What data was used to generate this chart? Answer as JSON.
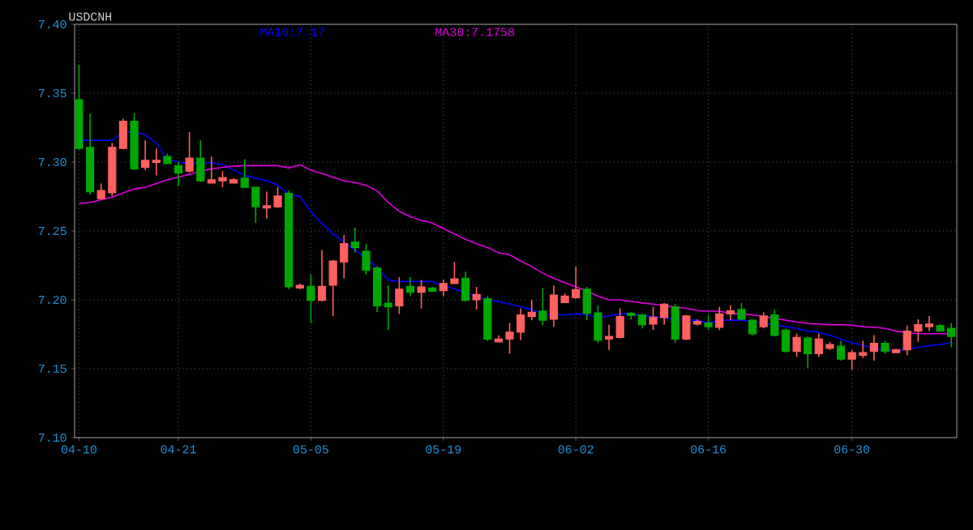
{
  "chart_data": {
    "type": "candlestick",
    "title": "USDCNH",
    "categories": [
      "04-10",
      null,
      null,
      null,
      null,
      null,
      null,
      null,
      null,
      "04-21",
      null,
      null,
      null,
      null,
      null,
      null,
      null,
      null,
      null,
      null,
      null,
      "05-05",
      null,
      null,
      null,
      null,
      null,
      null,
      null,
      null,
      null,
      null,
      null,
      "05-19",
      null,
      null,
      null,
      null,
      null,
      null,
      null,
      null,
      null,
      null,
      null,
      "06-02",
      null,
      null,
      null,
      null,
      null,
      null,
      null,
      null,
      null,
      null,
      null,
      "06-16",
      null,
      null,
      null,
      null,
      null,
      null,
      null,
      null,
      null,
      null,
      null,
      null,
      "06-30",
      null,
      null,
      null,
      null,
      null,
      null,
      null,
      null,
      null
    ],
    "ohlc": [
      [
        7.3453,
        7.3708,
        7.309,
        7.3099
      ],
      [
        7.3107,
        7.3355,
        7.2765,
        7.2785
      ],
      [
        7.2734,
        7.2844,
        7.2734,
        7.2793
      ],
      [
        7.2777,
        7.3139,
        7.2754,
        7.3107
      ],
      [
        7.3099,
        7.3315,
        7.3092,
        7.3296
      ],
      [
        7.3296,
        7.3355,
        7.2942,
        7.295
      ],
      [
        7.2962,
        7.3158,
        7.2942,
        7.3013
      ],
      [
        7.2997,
        7.3099,
        7.2903,
        7.3013
      ],
      [
        7.304,
        7.306,
        7.2989,
        7.2989
      ],
      [
        7.2974,
        7.3001,
        7.2824,
        7.2919
      ],
      [
        7.2934,
        7.3217,
        7.2923,
        7.3029
      ],
      [
        7.3029,
        7.3158,
        7.2856,
        7.2864
      ],
      [
        7.2848,
        7.304,
        7.2848,
        7.2872
      ],
      [
        7.2864,
        7.2934,
        7.2817,
        7.2887
      ],
      [
        7.2848,
        7.2883,
        7.2848,
        7.2872
      ],
      [
        7.2883,
        7.3021,
        7.2817,
        7.2817
      ],
      [
        7.2817,
        7.2817,
        7.2557,
        7.2675
      ],
      [
        7.2667,
        7.2785,
        7.2589,
        7.2683
      ],
      [
        7.2675,
        7.2817,
        7.2667,
        7.2754
      ],
      [
        7.2773,
        7.2793,
        7.2078,
        7.2094
      ],
      [
        7.2086,
        7.2118,
        7.2078,
        7.2106
      ],
      [
        7.2098,
        7.2184,
        7.1831,
        7.1996
      ],
      [
        7.1996,
        7.2361,
        7.1988,
        7.2098
      ],
      [
        7.2106,
        7.229,
        7.1882,
        7.2282
      ],
      [
        7.2275,
        7.2471,
        7.2157,
        7.2408
      ],
      [
        7.242,
        7.2525,
        7.2341,
        7.238
      ],
      [
        7.2353,
        7.2408,
        7.2184,
        7.2216
      ],
      [
        7.2231,
        7.2243,
        7.191,
        7.1957
      ],
      [
        7.1976,
        7.2106,
        7.178,
        7.1949
      ],
      [
        7.1957,
        7.2165,
        7.1898,
        7.2078
      ],
      [
        7.2098,
        7.2165,
        7.2027,
        7.2055
      ],
      [
        7.2055,
        7.2145,
        7.1937,
        7.2094
      ],
      [
        7.2086,
        7.2094,
        7.2063,
        7.2063
      ],
      [
        7.2067,
        7.2145,
        7.2027,
        7.2118
      ],
      [
        7.2118,
        7.2275,
        7.2118,
        7.2153
      ],
      [
        7.2157,
        7.2204,
        7.1988,
        7.1996
      ],
      [
        7.2,
        7.2094,
        7.1929,
        7.2039
      ],
      [
        7.2008,
        7.2027,
        7.1702,
        7.1714
      ],
      [
        7.1695,
        7.1741,
        7.1694,
        7.1715
      ],
      [
        7.1715,
        7.1832,
        7.1609,
        7.1766
      ],
      [
        7.1766,
        7.1938,
        7.1707,
        7.1891
      ],
      [
        7.1879,
        7.2,
        7.1852,
        7.191
      ],
      [
        7.1918,
        7.2086,
        7.1813,
        7.1852
      ],
      [
        7.1859,
        7.2105,
        7.1805,
        7.2035
      ],
      [
        7.198,
        7.2047,
        7.198,
        7.2027
      ],
      [
        7.2016,
        7.2242,
        7.2008,
        7.2074
      ],
      [
        7.2078,
        7.2094,
        7.1852,
        7.1902
      ],
      [
        7.1906,
        7.1961,
        7.1688,
        7.1707
      ],
      [
        7.1715,
        7.182,
        7.1637,
        7.1734
      ],
      [
        7.1727,
        7.1938,
        7.1719,
        7.1879
      ],
      [
        7.1902,
        7.191,
        7.1859,
        7.1887
      ],
      [
        7.1891,
        7.1898,
        7.1793,
        7.182
      ],
      [
        7.1824,
        7.1949,
        7.1781,
        7.1875
      ],
      [
        7.1871,
        7.1977,
        7.182,
        7.1969
      ],
      [
        7.1949,
        7.1969,
        7.1688,
        7.1715
      ],
      [
        7.1715,
        7.1891,
        7.1707,
        7.1883
      ],
      [
        7.1824,
        7.1859,
        7.1813,
        7.1844
      ],
      [
        7.1832,
        7.1891,
        7.1781,
        7.1805
      ],
      [
        7.1801,
        7.1949,
        7.1781,
        7.1898
      ],
      [
        7.1898,
        7.1961,
        7.1852,
        7.1922
      ],
      [
        7.193,
        7.1977,
        7.1852,
        7.1859
      ],
      [
        7.1852,
        7.1859,
        7.1742,
        7.1754
      ],
      [
        7.1805,
        7.191,
        7.1793,
        7.1883
      ],
      [
        7.1891,
        7.193,
        7.1734,
        7.1742
      ],
      [
        7.1781,
        7.1793,
        7.1617,
        7.1625
      ],
      [
        7.1625,
        7.1754,
        7.1586,
        7.1727
      ],
      [
        7.1723,
        7.1734,
        7.1508,
        7.1609
      ],
      [
        7.1609,
        7.1754,
        7.1586,
        7.1715
      ],
      [
        7.1648,
        7.1695,
        7.1637,
        7.1676
      ],
      [
        7.1664,
        7.1703,
        7.1559,
        7.157
      ],
      [
        7.157,
        7.1637,
        7.1492,
        7.1617
      ],
      [
        7.1598,
        7.1703,
        7.1578,
        7.1617
      ],
      [
        7.1625,
        7.1742,
        7.1559,
        7.1684
      ],
      [
        7.1684,
        7.1703,
        7.1609,
        7.1625
      ],
      [
        7.1617,
        7.1645,
        7.1617,
        7.1637
      ],
      [
        7.1637,
        7.1813,
        7.1598,
        7.1773
      ],
      [
        7.1773,
        7.1859,
        7.1695,
        7.182
      ],
      [
        7.1805,
        7.1883,
        7.1773,
        7.1824
      ],
      [
        7.1813,
        7.1824,
        7.1773,
        7.1773
      ],
      [
        7.1793,
        7.1832,
        7.1656,
        7.1734
      ]
    ],
    "colors": [
      "#00a800",
      "#00a800",
      "#ff6060",
      "#ff6060",
      "#ff6060",
      "#00a800",
      "#ff6060",
      "#ff6060",
      "#00a800",
      "#00a800",
      "#ff6060",
      "#00a800",
      "#ff6060",
      "#ff6060",
      "#ff6060",
      "#00a800",
      "#00a800",
      "#ff6060",
      "#ff6060",
      "#00a800",
      "#ff6060",
      "#00a800",
      "#ff6060",
      "#ff6060",
      "#ff6060",
      "#00a800",
      "#00a800",
      "#00a800",
      "#00a800",
      "#ff6060",
      "#00a800",
      "#ff6060",
      "#00a800",
      "#ff6060",
      "#ff6060",
      "#00a800",
      "#ff6060",
      "#00a800",
      "#ff6060",
      "#ff6060",
      "#ff6060",
      "#ff6060",
      "#00a800",
      "#ff6060",
      "#ff6060",
      "#ff6060",
      "#00a800",
      "#00a800",
      "#ff6060",
      "#ff6060",
      "#00a800",
      "#00a800",
      "#ff6060",
      "#ff6060",
      "#00a800",
      "#ff6060",
      "#ff6060",
      "#00a800",
      "#ff6060",
      "#ff6060",
      "#00a800",
      "#00a800",
      "#ff6060",
      "#00a800",
      "#00a800",
      "#ff6060",
      "#00a800",
      "#ff6060",
      "#ff6060",
      "#00a800",
      "#ff6060",
      "#ff6060",
      "#ff6060",
      "#00a800",
      "#ff6060",
      "#ff6060",
      "#ff6060",
      "#ff6060",
      "#00a800",
      "#00a800"
    ],
    "series": [
      {
        "name": "MA10:7.17",
        "type": "line",
        "color": "#0000ff",
        "values": [
          7.3158,
          7.3158,
          7.3158,
          7.3158,
          7.3217,
          7.3217,
          7.3198,
          7.3139,
          7.302,
          7.3,
          7.2989,
          7.2993,
          7.2997,
          7.2982,
          7.2942,
          7.2903,
          7.2883,
          7.2864,
          7.2832,
          7.2765,
          7.2753,
          7.2635,
          7.2557,
          7.2478,
          7.242,
          7.2361,
          7.2302,
          7.2235,
          7.2145,
          7.2133,
          7.2133,
          7.2133,
          7.2133,
          7.2106,
          7.2078,
          7.2055,
          7.2027,
          7.2,
          7.1988,
          7.1969,
          7.1949,
          7.193,
          7.1898,
          7.1891,
          7.1891,
          7.1898,
          7.1891,
          7.1871,
          7.1883,
          7.1898,
          7.1898,
          7.1883,
          7.1879,
          7.1871,
          7.1859,
          7.1852,
          7.1852,
          7.1832,
          7.1852,
          7.1852,
          7.1852,
          7.1844,
          7.1824,
          7.182,
          7.1805,
          7.1793,
          7.1773,
          7.1766,
          7.1742,
          7.1715,
          7.1688,
          7.1668,
          7.1648,
          7.1637,
          7.1629,
          7.1645,
          7.1656,
          7.1668,
          7.1676,
          7.1688
        ]
      },
      {
        "name": "MA30:7.1758",
        "type": "line",
        "color": "#e000e0",
        "values": [
          7.2699,
          7.2707,
          7.2726,
          7.2746,
          7.2777,
          7.2805,
          7.2817,
          7.2844,
          7.2872,
          7.2891,
          7.2911,
          7.2934,
          7.295,
          7.2962,
          7.297,
          7.2974,
          7.2974,
          7.2974,
          7.2974,
          7.2958,
          7.298,
          7.2941,
          7.2918,
          7.289,
          7.2863,
          7.2851,
          7.2831,
          7.2792,
          7.2706,
          7.2643,
          7.2604,
          7.2576,
          7.2557,
          7.2518,
          7.2478,
          7.2439,
          7.2408,
          7.238,
          7.2341,
          7.2328,
          7.2281,
          7.2242,
          7.2195,
          7.2156,
          7.2125,
          7.2094,
          7.2066,
          7.2027,
          7.2,
          7.2,
          7.1988,
          7.1977,
          7.1969,
          7.1957,
          7.1949,
          7.1938,
          7.1922,
          7.1918,
          7.1918,
          7.1902,
          7.1898,
          7.1891,
          7.1879,
          7.1867,
          7.1852,
          7.184,
          7.1828,
          7.1824,
          7.182,
          7.182,
          7.1816,
          7.1805,
          7.1801,
          7.1793,
          7.1773,
          7.1762,
          7.1754,
          7.1754,
          7.1754,
          7.1754
        ]
      }
    ],
    "ylim": [
      7.1,
      7.4
    ],
    "yticks": [
      {
        "value": 7.1,
        "label": "7.10"
      },
      {
        "value": 7.15,
        "label": "7.15"
      },
      {
        "value": 7.2,
        "label": "7.20"
      },
      {
        "value": 7.25,
        "label": "7.25"
      },
      {
        "value": 7.3,
        "label": "7.30"
      },
      {
        "value": 7.35,
        "label": "7.35"
      },
      {
        "value": 7.4,
        "label": "7.40"
      }
    ],
    "grid": true,
    "legend": "top"
  }
}
